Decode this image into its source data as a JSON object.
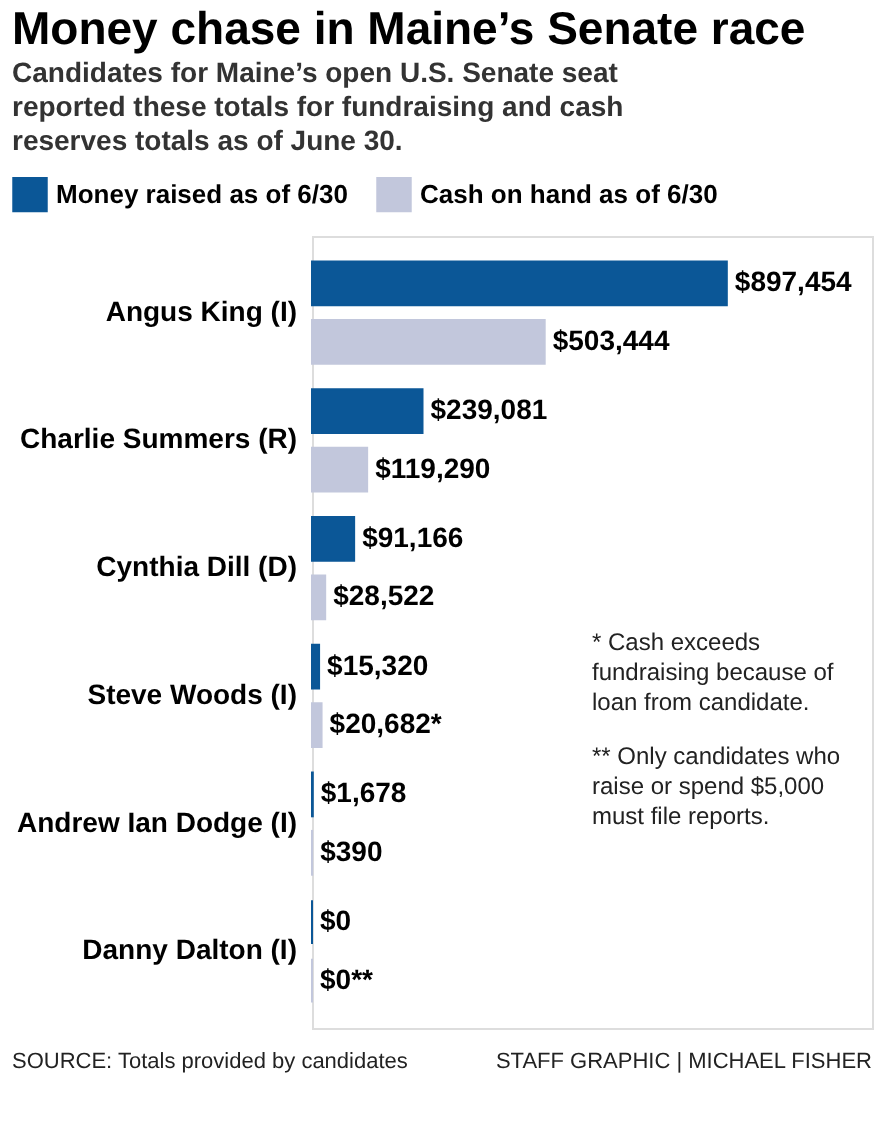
{
  "chart_data": {
    "type": "bar",
    "orientation": "horizontal",
    "title": "Money chase in Maine’s Senate race",
    "subtitle": "Candidates for Maine’s open U.S. Senate seat reported these totals for fundraising and cash reserves totals as of June 30.",
    "categories": [
      "Angus King (I)",
      "Charlie Summers (R)",
      "Cynthia Dill (D)",
      "Steve Woods (I)",
      "Andrew Ian Dodge (I)",
      "Danny Dalton (I)"
    ],
    "series": [
      {
        "name": "Money raised as of 6/30",
        "color": "#0b5797",
        "values": [
          897454,
          239081,
          91166,
          15320,
          1678,
          0
        ],
        "value_labels": [
          "$897,454",
          "$239,081",
          "$91,166",
          "$15,320",
          "$1,678",
          "$0"
        ]
      },
      {
        "name": "Cash on hand as of 6/30",
        "color": "#c2c7dc",
        "values": [
          503444,
          119290,
          28522,
          20682,
          390,
          0
        ],
        "value_labels": [
          "$503,444",
          "$119,290",
          "$28,522",
          "$20,682*",
          "$390",
          "$0**"
        ]
      }
    ],
    "legend": "top left",
    "grid": false,
    "annotations": [
      "* Cash exceeds fundraising because of loan from candidate.",
      "** Only candidates who raise or spend $5,000 must file reports.",
      "SOURCE: Totals provided by candidates",
      "STAFF GRAPHIC | MICHAEL FISHER"
    ]
  }
}
